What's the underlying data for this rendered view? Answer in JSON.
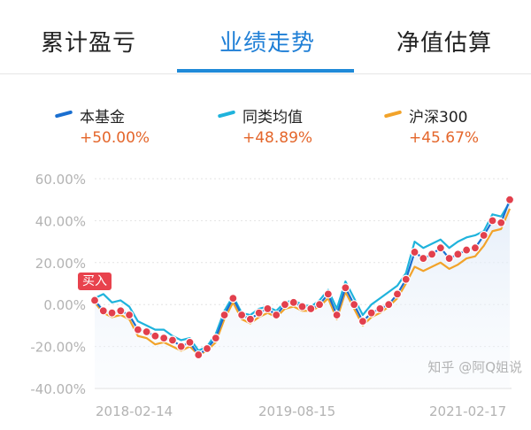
{
  "tabs": [
    {
      "label": "累计盈亏"
    },
    {
      "label": "业绩走势",
      "active": true
    },
    {
      "label": "净值估算"
    }
  ],
  "legend": [
    {
      "name": "本基金",
      "value": "+50.00%",
      "color": "#1a6fd0"
    },
    {
      "name": "同类均值",
      "value": "+48.89%",
      "color": "#1fb3dc"
    },
    {
      "name": "沪深300",
      "value": "+45.67%",
      "color": "#f2a32a"
    }
  ],
  "buy_label": "买入",
  "watermark": "知乎 @阿Q姐说",
  "chart_data": {
    "type": "line",
    "yticks": [
      "60.00%",
      "40.00%",
      "20.00%",
      "0.00%",
      "-20.00%",
      "-40.00%"
    ],
    "ylim": [
      -40,
      60
    ],
    "xticks": [
      "2018-02-14",
      "2019-08-15",
      "2021-02-17"
    ],
    "grid": true,
    "series": [
      {
        "name": "本基金",
        "color": "#1a6fd0",
        "values": [
          2,
          -3,
          -4,
          -3,
          -5,
          -12,
          -13,
          -15,
          -16,
          -17,
          -20,
          -18,
          -24,
          -21,
          -16,
          -5,
          3,
          -5,
          -7,
          -4,
          -2,
          -5,
          0,
          1,
          -1,
          -2,
          0,
          5,
          -5,
          8,
          0,
          -8,
          -4,
          -2,
          0,
          5,
          12,
          25,
          22,
          24,
          27,
          22,
          24,
          26,
          27,
          33,
          40,
          39,
          50
        ]
      },
      {
        "name": "同类均值",
        "color": "#1fb3dc",
        "values": [
          3,
          5,
          1,
          2,
          -1,
          -8,
          -10,
          -12,
          -12,
          -15,
          -17,
          -16,
          -22,
          -20,
          -14,
          -3,
          4,
          -4,
          -5,
          -2,
          -1,
          -3,
          1,
          2,
          0,
          -1,
          2,
          7,
          -2,
          11,
          3,
          -5,
          0,
          3,
          6,
          9,
          15,
          30,
          27,
          29,
          31,
          27,
          30,
          32,
          33,
          35,
          43,
          42,
          48.89
        ]
      },
      {
        "name": "沪深300",
        "color": "#f2a32a",
        "values": [
          1,
          -4,
          -6,
          -5,
          -7,
          -15,
          -16,
          -19,
          -18,
          -20,
          -22,
          -20,
          -24,
          -22,
          -18,
          -7,
          1,
          -7,
          -9,
          -6,
          -4,
          -6,
          -2,
          -1,
          -3,
          -3,
          -1,
          3,
          -7,
          6,
          -2,
          -10,
          -6,
          -4,
          -1,
          3,
          10,
          18,
          16,
          18,
          20,
          17,
          19,
          22,
          23,
          28,
          35,
          36,
          45.67
        ]
      }
    ]
  }
}
